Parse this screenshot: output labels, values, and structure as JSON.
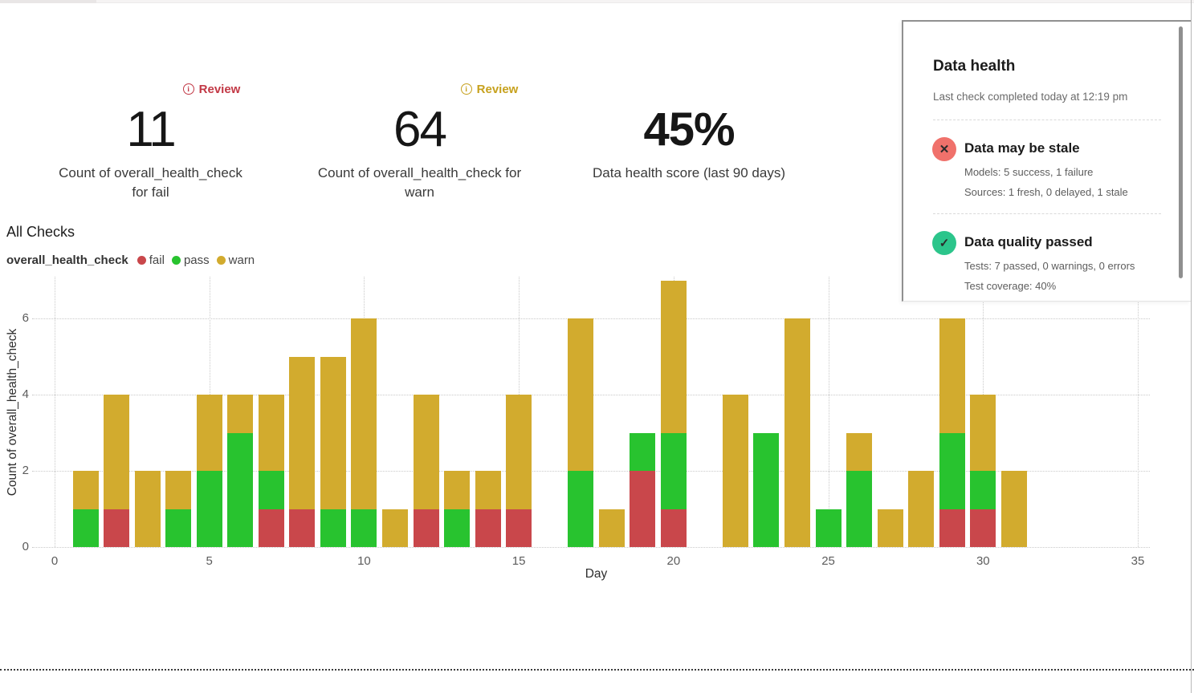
{
  "metrics": [
    {
      "value": "11",
      "label_lines": [
        "Count of overall_health_check",
        "for fail"
      ],
      "badge": {
        "label": "Review",
        "color": "#c23845",
        "icon": "info-icon"
      }
    },
    {
      "value": "64",
      "label_lines": [
        "Count of overall_health_check for",
        "warn"
      ],
      "badge": {
        "label": "Review",
        "color": "#c7a11d",
        "icon": "info-icon"
      }
    },
    {
      "value": "45%",
      "label_lines": [
        "Data health score (last 90 days)"
      ]
    }
  ],
  "health_panel": {
    "title": "Data health",
    "subtitle": "Last check completed today at 12:19 pm",
    "sections": [
      {
        "icon": "x-circle-icon",
        "icon_color": "#f0716b",
        "title": "Data may be stale",
        "lines": [
          "Models: 5 success, 1 failure",
          "Sources: 1 fresh, 0 delayed, 1 stale"
        ]
      },
      {
        "icon": "check-circle-icon",
        "icon_color": "#2cc58b",
        "title": "Data quality passed",
        "lines": [
          "Tests: 7 passed, 0 warnings, 0 errors",
          "Test coverage: 40%"
        ]
      }
    ]
  },
  "chart_section": {
    "title": "All Checks",
    "legend_title": "overall_health_check",
    "legend": [
      {
        "label": "fail",
        "color": "#c9474b"
      },
      {
        "label": "pass",
        "color": "#28c32f"
      },
      {
        "label": "warn",
        "color": "#d2ab2e"
      }
    ]
  },
  "chart_data": {
    "type": "bar",
    "stacked": true,
    "title": "All Checks",
    "xlabel": "Day",
    "ylabel": "Count of overall_health_check",
    "xlim": [
      0,
      35
    ],
    "ylim": [
      0,
      7.1
    ],
    "x_ticks": [
      0,
      5,
      10,
      15,
      20,
      25,
      30,
      35
    ],
    "y_ticks": [
      0,
      2,
      4,
      6
    ],
    "grid": true,
    "legend_position": "top-left",
    "x": [
      1,
      2,
      3,
      4,
      5,
      6,
      7,
      8,
      9,
      10,
      11,
      12,
      13,
      14,
      15,
      16,
      17,
      18,
      19,
      20,
      21,
      22,
      23,
      24,
      25,
      26,
      27,
      28,
      29,
      30,
      31
    ],
    "series": [
      {
        "name": "fail",
        "color": "#c9474b",
        "values": [
          0,
          1,
          0,
          0,
          0,
          0,
          1,
          1,
          0,
          0,
          0,
          1,
          0,
          1,
          1,
          0,
          0,
          0,
          2,
          1,
          0,
          0,
          0,
          0,
          0,
          0,
          0,
          0,
          1,
          1,
          0
        ]
      },
      {
        "name": "pass",
        "color": "#28c32f",
        "values": [
          1,
          0,
          0,
          1,
          2,
          3,
          1,
          0,
          1,
          1,
          0,
          0,
          1,
          0,
          0,
          0,
          2,
          0,
          1,
          2,
          0,
          0,
          3,
          0,
          1,
          2,
          0,
          0,
          2,
          1,
          0
        ]
      },
      {
        "name": "warn",
        "color": "#d2ab2e",
        "values": [
          1,
          3,
          2,
          1,
          2,
          1,
          2,
          4,
          4,
          5,
          1,
          3,
          1,
          1,
          3,
          0,
          4,
          1,
          0,
          4,
          0,
          4,
          0,
          6,
          0,
          1,
          1,
          2,
          3,
          2,
          2
        ]
      }
    ]
  }
}
